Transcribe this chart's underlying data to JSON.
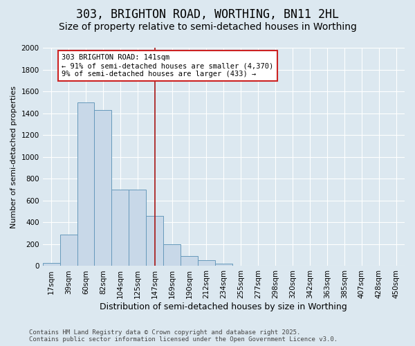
{
  "title1": "303, BRIGHTON ROAD, WORTHING, BN11 2HL",
  "title2": "Size of property relative to semi-detached houses in Worthing",
  "xlabel": "Distribution of semi-detached houses by size in Worthing",
  "ylabel": "Number of semi-detached properties",
  "bins": [
    "17sqm",
    "39sqm",
    "60sqm",
    "82sqm",
    "104sqm",
    "125sqm",
    "147sqm",
    "169sqm",
    "190sqm",
    "212sqm",
    "234sqm",
    "255sqm",
    "277sqm",
    "298sqm",
    "320sqm",
    "342sqm",
    "363sqm",
    "385sqm",
    "407sqm",
    "428sqm",
    "450sqm"
  ],
  "values": [
    30,
    290,
    1500,
    1430,
    700,
    700,
    460,
    200,
    90,
    55,
    25,
    5,
    5,
    0,
    0,
    0,
    0,
    0,
    0,
    0,
    0
  ],
  "bar_color": "#c8d8e8",
  "bar_edge_color": "#6699bb",
  "vline_x": 6,
  "vline_color": "#aa2222",
  "annotation_text": "303 BRIGHTON ROAD: 141sqm\n← 91% of semi-detached houses are smaller (4,370)\n9% of semi-detached houses are larger (433) →",
  "annotation_box_color": "#ffffff",
  "annotation_box_edge": "#cc2222",
  "ylim": [
    0,
    2000
  ],
  "yticks": [
    0,
    200,
    400,
    600,
    800,
    1000,
    1200,
    1400,
    1600,
    1800,
    2000
  ],
  "background_color": "#dce8f0",
  "plot_bg_color": "#dce8f0",
  "footer": "Contains HM Land Registry data © Crown copyright and database right 2025.\nContains public sector information licensed under the Open Government Licence v3.0.",
  "title1_fontsize": 12,
  "title2_fontsize": 10,
  "xlabel_fontsize": 9,
  "ylabel_fontsize": 8,
  "tick_fontsize": 7.5,
  "footer_fontsize": 6.5
}
